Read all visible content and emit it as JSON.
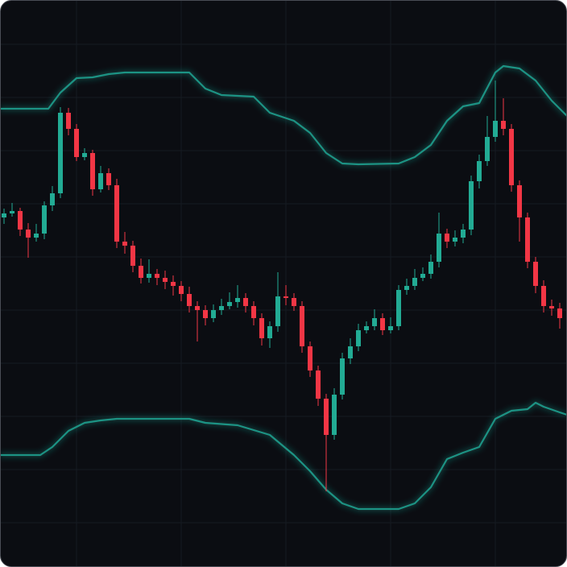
{
  "chart_data": {
    "type": "candlestick",
    "x": [
      0,
      1,
      2,
      3,
      4,
      5,
      6,
      7,
      8,
      9,
      10,
      11,
      12,
      13,
      14,
      15,
      16,
      17,
      18,
      19,
      20,
      21,
      22,
      23,
      24,
      25,
      26,
      27,
      28,
      29,
      30,
      31,
      32,
      33,
      34,
      35,
      36,
      37,
      38,
      39,
      40,
      41,
      42,
      43,
      44,
      45,
      46,
      47,
      48,
      49,
      50,
      51,
      52,
      53,
      54,
      55,
      56,
      57,
      58,
      59,
      60,
      61,
      62,
      63,
      64,
      65,
      66,
      67,
      68,
      69
    ],
    "open": [
      434,
      439,
      442,
      419,
      409,
      414,
      449,
      464,
      564,
      544,
      509,
      514,
      469,
      489,
      474,
      404,
      399,
      374,
      359,
      364,
      359,
      354,
      349,
      339,
      324,
      319,
      309,
      319,
      324,
      329,
      334,
      324,
      309,
      284,
      299,
      336,
      334,
      324,
      274,
      244,
      209,
      164,
      214,
      259,
      274,
      294,
      299,
      309,
      294,
      299,
      344,
      349,
      359,
      364,
      379,
      414,
      404,
      409,
      419,
      479,
      504,
      534,
      554,
      544,
      474,
      434,
      379,
      349,
      324,
      321
    ],
    "high": [
      445,
      452,
      446,
      427,
      426,
      454,
      473,
      571,
      570,
      550,
      520,
      518,
      498,
      495,
      482,
      416,
      405,
      383,
      382,
      370,
      368,
      362,
      355,
      348,
      330,
      325,
      326,
      333,
      341,
      350,
      340,
      330,
      315,
      305,
      366,
      350,
      340,
      330,
      280,
      250,
      215,
      222,
      266,
      284,
      302,
      305,
      320,
      315,
      310,
      350,
      358,
      370,
      372,
      388,
      440,
      420,
      418,
      426,
      486,
      512,
      560,
      604,
      582,
      550,
      480,
      440,
      385,
      356,
      332,
      328
    ],
    "low": [
      426,
      435,
      411,
      384,
      404,
      407,
      442,
      458,
      536,
      504,
      505,
      461,
      465,
      468,
      396,
      389,
      366,
      352,
      353,
      350,
      345,
      337,
      330,
      316,
      280,
      300,
      304,
      313,
      320,
      322,
      316,
      300,
      275,
      272,
      292,
      325,
      318,
      266,
      236,
      200,
      94,
      158,
      208,
      252,
      268,
      290,
      294,
      288,
      290,
      294,
      338,
      344,
      355,
      358,
      372,
      396,
      398,
      402,
      412,
      470,
      498,
      528,
      536,
      466,
      404,
      371,
      340,
      316,
      312,
      296
    ],
    "close": [
      439,
      442,
      419,
      409,
      414,
      449,
      464,
      564,
      544,
      509,
      514,
      469,
      489,
      474,
      404,
      399,
      374,
      359,
      364,
      359,
      354,
      349,
      339,
      324,
      319,
      309,
      319,
      324,
      329,
      334,
      324,
      309,
      284,
      299,
      336,
      334,
      324,
      274,
      244,
      209,
      164,
      214,
      259,
      274,
      294,
      299,
      309,
      294,
      299,
      344,
      349,
      359,
      364,
      379,
      414,
      404,
      409,
      419,
      479,
      504,
      534,
      554,
      544,
      474,
      434,
      379,
      349,
      324,
      321,
      309
    ],
    "up_color": "#22ab94",
    "down_color": "#f23645",
    "series": [
      {
        "color": "#1f9384",
        "x": [
          -0.5,
          5.5,
          7,
          9,
          11,
          13,
          15,
          23,
          25,
          27,
          31,
          33,
          36,
          38,
          40,
          42,
          44,
          49,
          51,
          53,
          55,
          57,
          59,
          61,
          62,
          64,
          66,
          68,
          69,
          69.9
        ],
        "values": [
          569,
          569,
          589,
          607,
          608,
          612,
          614,
          614,
          594,
          586,
          584,
          564,
          554,
          539,
          514,
          501,
          500,
          501,
          509,
          524,
          554,
          572,
          576,
          614,
          622,
          619,
          604,
          579,
          569,
          560
        ]
      },
      {
        "color": "#1f9384",
        "x": [
          -0.5,
          4.5,
          6,
          8,
          10,
          12,
          14,
          23,
          25,
          29,
          33,
          36,
          38,
          40,
          42,
          44,
          49,
          51,
          53,
          55,
          57,
          59,
          61,
          63,
          65,
          66,
          67,
          69,
          69.9
        ],
        "values": [
          139,
          139,
          149,
          169,
          179,
          182,
          184,
          184,
          179,
          176,
          164,
          139,
          119,
          96,
          79,
          72,
          72,
          79,
          99,
          134,
          142,
          149,
          184,
          194,
          196,
          204,
          199,
          192,
          189
        ]
      }
    ],
    "xlim": [
      -0.5,
      69.9
    ],
    "ylim": [
      0,
      704
    ],
    "xticks": [
      9,
      22,
      35,
      48,
      61
    ],
    "yticks": [
      55,
      121,
      187,
      253,
      319,
      385,
      451,
      517,
      583,
      649
    ],
    "grid": true
  }
}
